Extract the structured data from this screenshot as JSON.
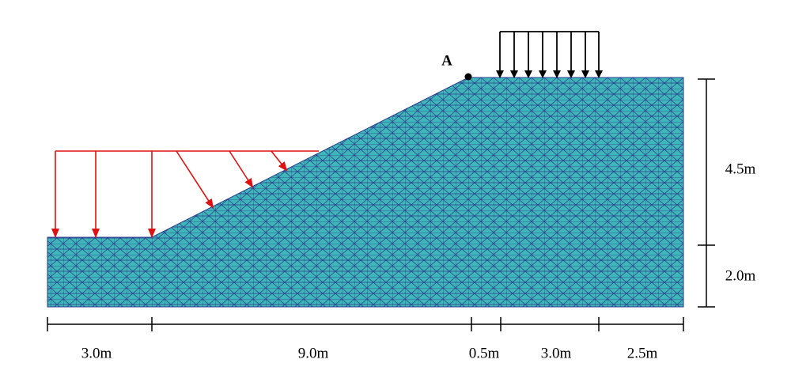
{
  "point_label": "A",
  "dimensions": {
    "horizontal": [
      "3.0m",
      "9.0m",
      "0.5m",
      "3.0m",
      "2.5m"
    ],
    "vertical": [
      "4.5m",
      "2.0m"
    ]
  }
}
